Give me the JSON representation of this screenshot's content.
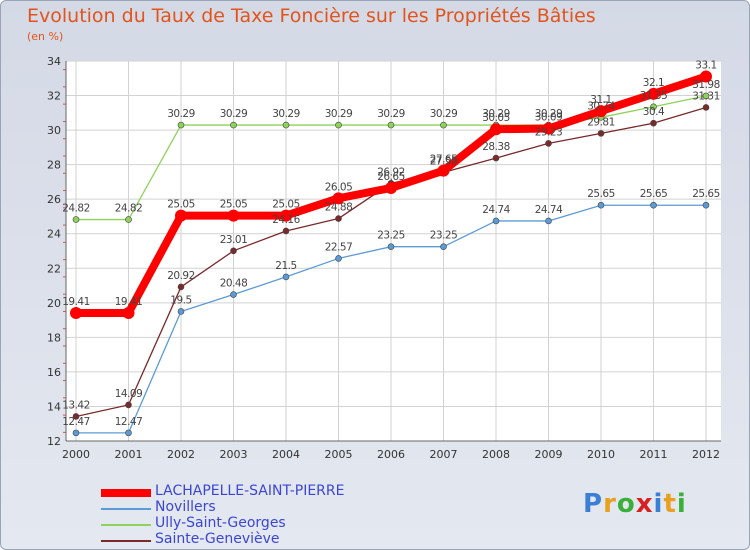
{
  "chart_data": {
    "type": "line",
    "title": "Evolution du Taux de Taxe Foncière sur les Propriétés Bâties",
    "ylabel": "(en %)",
    "xlabel": "",
    "ylim": [
      12,
      34
    ],
    "yticks": [
      12,
      14,
      16,
      18,
      20,
      22,
      24,
      26,
      28,
      30,
      32,
      34
    ],
    "grid": true,
    "legend_position": "bottom-left",
    "categories": [
      "2000",
      "2001",
      "2002",
      "2003",
      "2004",
      "2005",
      "2006",
      "2007",
      "2008",
      "2009",
      "2010",
      "2011",
      "2012"
    ],
    "series": [
      {
        "name": "LACHAPELLE-SAINT-PIERRE",
        "color": "#ff0000",
        "values": [
          19.41,
          19.41,
          25.05,
          25.05,
          25.05,
          26.05,
          26.65,
          27.65,
          30.05,
          30.09,
          31.1,
          32.1,
          33.1
        ],
        "labels": [
          "19.41",
          "19.41",
          "25.05",
          "25.05",
          "25.05",
          "26.05",
          "26.65",
          "27.65",
          "30.05",
          "30.09",
          "31.1",
          "32.1",
          "33.1"
        ]
      },
      {
        "name": "Novillers",
        "color": "#5b9bd5",
        "values": [
          12.47,
          12.47,
          19.5,
          20.48,
          21.5,
          22.57,
          23.25,
          23.25,
          24.74,
          24.74,
          25.65,
          25.65,
          25.65
        ],
        "labels": [
          "12.47",
          "12.47",
          "19.5",
          "20.48",
          "21.5",
          "22.57",
          "23.25",
          "23.25",
          "24.74",
          "24.74",
          "25.65",
          "25.65",
          "25.65"
        ]
      },
      {
        "name": "Ully-Saint-Georges",
        "color": "#8ed25a",
        "values": [
          24.82,
          24.82,
          30.29,
          30.29,
          30.29,
          30.29,
          30.29,
          30.29,
          30.29,
          30.29,
          30.74,
          31.35,
          31.98
        ],
        "labels": [
          "24.82",
          "24.82",
          "30.29",
          "30.29",
          "30.29",
          "30.29",
          "30.29",
          "30.29",
          "30.29",
          "30.29",
          "30.74",
          "31.35",
          "31.98"
        ]
      },
      {
        "name": "Sainte-Geneviève",
        "color": "#7a2a2a",
        "values": [
          13.42,
          14.09,
          20.92,
          23.01,
          24.16,
          24.88,
          26.92,
          27.55,
          28.38,
          29.23,
          29.81,
          30.4,
          31.31
        ],
        "labels": [
          "13.42",
          "14.09",
          "20.92",
          "23.01",
          "24.16",
          "24.88",
          "26.92",
          "27.55",
          "28.38",
          "29.23",
          "29.81",
          "30.4",
          "31.31"
        ]
      }
    ]
  },
  "logo": {
    "text": "Proxiti",
    "letter_colors": [
      "#3b7fd4",
      "#e8a020",
      "#3ab03a",
      "#d82020",
      "#3b7fd4",
      "#e8a020",
      "#3ab03a"
    ]
  }
}
